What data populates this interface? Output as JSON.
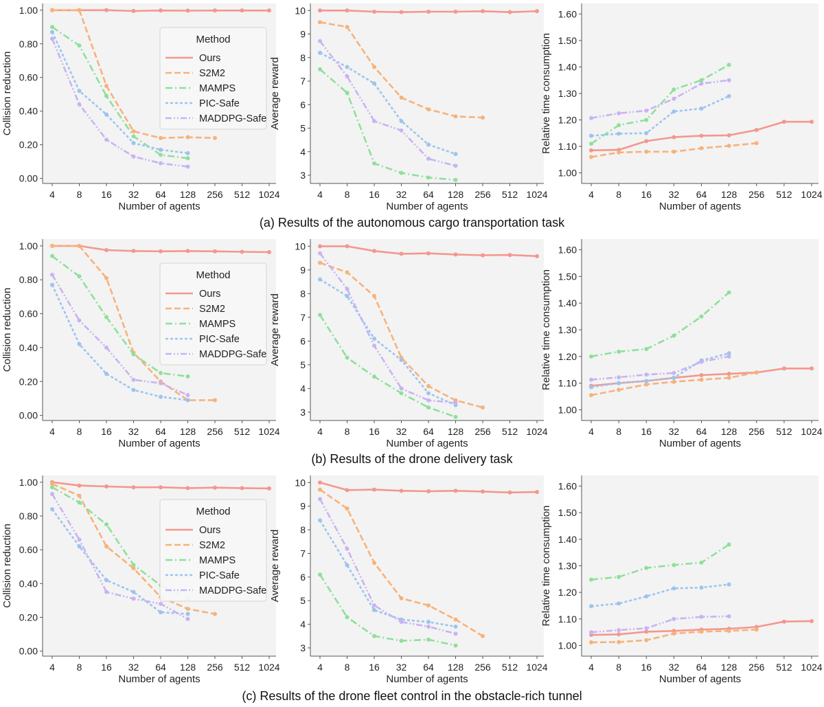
{
  "x_ticks": [
    "4",
    "8",
    "16",
    "32",
    "64",
    "128",
    "256",
    "512",
    "1024"
  ],
  "legend": {
    "title": "Method",
    "entries": [
      {
        "name": "Ours",
        "color": "#f4978e",
        "dash": "solid"
      },
      {
        "name": "S2M2",
        "color": "#f7b27a",
        "dash": "dashed"
      },
      {
        "name": "MAMPS",
        "color": "#8ee09a",
        "dash": "dashdot"
      },
      {
        "name": "PIC-Safe",
        "color": "#9cc4ef",
        "dash": "dotted"
      },
      {
        "name": "MADDPG-Safe",
        "color": "#c8b3f3",
        "dash": "dashdotdot"
      }
    ]
  },
  "chart_data": [
    {
      "type": "line",
      "caption": "(a) Results of the autonomous cargo transportation task",
      "panels": [
        {
          "metric": "collision",
          "xlabel": "Number of agents",
          "ylabel": "Collision reduction",
          "x": [
            4,
            8,
            16,
            32,
            64,
            128,
            256,
            512,
            1024
          ],
          "ylim": [
            -0.03,
            1.04
          ],
          "yticks": [
            0.0,
            0.2,
            0.4,
            0.6,
            0.8,
            1.0
          ],
          "ytick_labels": [
            "0.00",
            "0.20",
            "0.40",
            "0.60",
            "0.80",
            "1.00"
          ],
          "legend": "upper-right",
          "series": [
            {
              "name": "Ours",
              "values": [
                1.0,
                1.0,
                1.0,
                0.995,
                0.998,
                0.997,
                0.998,
                0.998,
                0.998
              ]
            },
            {
              "name": "S2M2",
              "values": [
                1.0,
                1.0,
                0.55,
                0.28,
                0.24,
                0.245,
                0.24
              ]
            },
            {
              "name": "MAMPS",
              "values": [
                0.9,
                0.79,
                0.49,
                0.25,
                0.14,
                0.12
              ]
            },
            {
              "name": "PIC-Safe",
              "values": [
                0.87,
                0.52,
                0.38,
                0.21,
                0.17,
                0.15
              ]
            },
            {
              "name": "MADDPG-Safe",
              "values": [
                0.83,
                0.44,
                0.23,
                0.13,
                0.09,
                0.07
              ]
            }
          ]
        },
        {
          "metric": "reward",
          "xlabel": "Number of agents",
          "ylabel": "Average reward",
          "x": [
            4,
            8,
            16,
            32,
            64,
            128,
            256,
            512,
            1024
          ],
          "ylim": [
            2.65,
            10.3
          ],
          "yticks": [
            3,
            4,
            5,
            6,
            7,
            8,
            9,
            10
          ],
          "ytick_labels": [
            "3",
            "4",
            "5",
            "6",
            "7",
            "8",
            "9",
            "10"
          ],
          "series": [
            {
              "name": "Ours",
              "values": [
                10.0,
                10.0,
                9.95,
                9.93,
                9.95,
                9.95,
                9.97,
                9.93,
                9.97
              ]
            },
            {
              "name": "S2M2",
              "values": [
                9.5,
                9.3,
                7.6,
                6.3,
                5.8,
                5.5,
                5.45
              ]
            },
            {
              "name": "MAMPS",
              "values": [
                7.5,
                6.5,
                3.5,
                3.1,
                2.9,
                2.8
              ]
            },
            {
              "name": "PIC-Safe",
              "values": [
                8.2,
                7.6,
                6.9,
                5.3,
                4.3,
                3.9
              ]
            },
            {
              "name": "MADDPG-Safe",
              "values": [
                8.7,
                7.2,
                5.3,
                4.9,
                3.7,
                3.4
              ]
            }
          ]
        },
        {
          "metric": "time",
          "xlabel": "Number of agents",
          "ylabel": "Relative time consumption",
          "x": [
            4,
            8,
            16,
            32,
            64,
            128,
            256,
            512,
            1024
          ],
          "ylim": [
            0.96,
            1.64
          ],
          "yticks": [
            1.0,
            1.1,
            1.2,
            1.3,
            1.4,
            1.5,
            1.6
          ],
          "ytick_labels": [
            "1.00",
            "1.10",
            "1.20",
            "1.30",
            "1.40",
            "1.50",
            "1.60"
          ],
          "series": [
            {
              "name": "Ours",
              "values": [
                1.085,
                1.087,
                1.12,
                1.135,
                1.14,
                1.142,
                1.162,
                1.193,
                1.193
              ]
            },
            {
              "name": "S2M2",
              "values": [
                1.06,
                1.077,
                1.08,
                1.08,
                1.093,
                1.102,
                1.112
              ]
            },
            {
              "name": "MAMPS",
              "values": [
                1.11,
                1.18,
                1.2,
                1.315,
                1.35,
                1.408
              ]
            },
            {
              "name": "PIC-Safe",
              "values": [
                1.14,
                1.148,
                1.15,
                1.232,
                1.243,
                1.29
              ]
            },
            {
              "name": "MADDPG-Safe",
              "values": [
                1.207,
                1.225,
                1.235,
                1.28,
                1.337,
                1.35
              ]
            }
          ]
        }
      ]
    },
    {
      "type": "line",
      "caption": "(b) Results of the drone delivery task",
      "panels": [
        {
          "metric": "collision",
          "xlabel": "Number of agents",
          "ylabel": "Collision reduction",
          "x": [
            4,
            8,
            16,
            32,
            64,
            128,
            256,
            512,
            1024
          ],
          "ylim": [
            -0.03,
            1.04
          ],
          "yticks": [
            0.0,
            0.2,
            0.4,
            0.6,
            0.8,
            1.0
          ],
          "ytick_labels": [
            "0.00",
            "0.20",
            "0.40",
            "0.60",
            "0.80",
            "1.00"
          ],
          "legend": "upper-right",
          "series": [
            {
              "name": "Ours",
              "values": [
                1.0,
                1.0,
                0.975,
                0.97,
                0.968,
                0.97,
                0.968,
                0.965,
                0.963
              ]
            },
            {
              "name": "S2M2",
              "values": [
                1.0,
                1.0,
                0.81,
                0.37,
                0.2,
                0.09,
                0.09
              ]
            },
            {
              "name": "MAMPS",
              "values": [
                0.94,
                0.82,
                0.58,
                0.36,
                0.25,
                0.23
              ]
            },
            {
              "name": "PIC-Safe",
              "values": [
                0.77,
                0.42,
                0.245,
                0.15,
                0.11,
                0.09
              ]
            },
            {
              "name": "MADDPG-Safe",
              "values": [
                0.83,
                0.56,
                0.4,
                0.21,
                0.19,
                0.12
              ]
            }
          ]
        },
        {
          "metric": "reward",
          "xlabel": "Number of agents",
          "ylabel": "Average reward",
          "x": [
            4,
            8,
            16,
            32,
            64,
            128,
            256,
            512,
            1024
          ],
          "ylim": [
            2.65,
            10.3
          ],
          "yticks": [
            3,
            4,
            5,
            6,
            7,
            8,
            9,
            10
          ],
          "ytick_labels": [
            "3",
            "4",
            "5",
            "6",
            "7",
            "8",
            "9",
            "10"
          ],
          "series": [
            {
              "name": "Ours",
              "values": [
                10.0,
                10.0,
                9.8,
                9.68,
                9.7,
                9.65,
                9.62,
                9.63,
                9.58
              ]
            },
            {
              "name": "S2M2",
              "values": [
                9.3,
                8.9,
                7.9,
                5.3,
                4.1,
                3.5,
                3.2
              ]
            },
            {
              "name": "MAMPS",
              "values": [
                7.1,
                5.3,
                4.5,
                3.8,
                3.2,
                2.8
              ]
            },
            {
              "name": "PIC-Safe",
              "values": [
                8.6,
                7.9,
                6.1,
                5.2,
                3.8,
                3.3
              ]
            },
            {
              "name": "MADDPG-Safe",
              "values": [
                9.7,
                8.2,
                5.8,
                4.0,
                3.5,
                3.4
              ]
            }
          ]
        },
        {
          "metric": "time",
          "xlabel": "Number of agents",
          "ylabel": "Relative time consumption",
          "x": [
            4,
            8,
            16,
            32,
            64,
            128,
            256,
            512,
            1024
          ],
          "ylim": [
            0.96,
            1.64
          ],
          "yticks": [
            1.0,
            1.1,
            1.2,
            1.3,
            1.4,
            1.5,
            1.6
          ],
          "ytick_labels": [
            "1.00",
            "1.10",
            "1.20",
            "1.30",
            "1.40",
            "1.50",
            "1.60"
          ],
          "series": [
            {
              "name": "Ours",
              "values": [
                1.09,
                1.1,
                1.108,
                1.12,
                1.13,
                1.135,
                1.14,
                1.155,
                1.155
              ]
            },
            {
              "name": "S2M2",
              "values": [
                1.055,
                1.075,
                1.095,
                1.105,
                1.113,
                1.12,
                1.14
              ]
            },
            {
              "name": "MAMPS",
              "values": [
                1.2,
                1.218,
                1.228,
                1.278,
                1.35,
                1.44
              ]
            },
            {
              "name": "PIC-Safe",
              "values": [
                1.085,
                1.1,
                1.108,
                1.12,
                1.185,
                1.212
              ]
            },
            {
              "name": "MADDPG-Safe",
              "values": [
                1.113,
                1.122,
                1.132,
                1.138,
                1.18,
                1.2
              ]
            }
          ]
        }
      ]
    },
    {
      "type": "line",
      "caption": "(c) Results of the drone fleet control in the obstacle-rich tunnel",
      "panels": [
        {
          "metric": "collision",
          "xlabel": "Number of agents",
          "ylabel": "Collision reduction",
          "x": [
            4,
            8,
            16,
            32,
            64,
            128,
            256,
            512,
            1024
          ],
          "ylim": [
            -0.03,
            1.04
          ],
          "yticks": [
            0.0,
            0.2,
            0.4,
            0.6,
            0.8,
            1.0
          ],
          "ytick_labels": [
            "0.00",
            "0.20",
            "0.40",
            "0.60",
            "0.80",
            "1.00"
          ],
          "legend": "upper-right",
          "series": [
            {
              "name": "Ours",
              "values": [
                1.0,
                0.98,
                0.975,
                0.97,
                0.97,
                0.965,
                0.968,
                0.965,
                0.963
              ]
            },
            {
              "name": "S2M2",
              "values": [
                0.99,
                0.92,
                0.62,
                0.49,
                0.32,
                0.25,
                0.22
              ]
            },
            {
              "name": "MAMPS",
              "values": [
                0.97,
                0.88,
                0.75,
                0.51,
                0.39,
                0.31
              ]
            },
            {
              "name": "PIC-Safe",
              "values": [
                0.84,
                0.62,
                0.42,
                0.35,
                0.23,
                0.22
              ]
            },
            {
              "name": "MADDPG-Safe",
              "values": [
                0.93,
                0.66,
                0.35,
                0.31,
                0.28,
                0.19
              ]
            }
          ]
        },
        {
          "metric": "reward",
          "xlabel": "Number of agents",
          "ylabel": "Average reward",
          "x": [
            4,
            8,
            16,
            32,
            64,
            128,
            256,
            512,
            1024
          ],
          "ylim": [
            2.65,
            10.3
          ],
          "yticks": [
            3,
            4,
            5,
            6,
            7,
            8,
            9,
            10
          ],
          "ytick_labels": [
            "3",
            "4",
            "5",
            "6",
            "7",
            "8",
            "9",
            "10"
          ],
          "series": [
            {
              "name": "Ours",
              "values": [
                10.0,
                9.68,
                9.7,
                9.65,
                9.63,
                9.65,
                9.62,
                9.58,
                9.6
              ]
            },
            {
              "name": "S2M2",
              "values": [
                9.7,
                8.9,
                6.6,
                5.1,
                4.8,
                4.2,
                3.5
              ]
            },
            {
              "name": "MAMPS",
              "values": [
                6.1,
                4.3,
                3.5,
                3.3,
                3.35,
                3.1
              ]
            },
            {
              "name": "PIC-Safe",
              "values": [
                8.4,
                6.5,
                4.6,
                4.2,
                4.1,
                3.9
              ]
            },
            {
              "name": "MADDPG-Safe",
              "values": [
                9.3,
                7.2,
                4.8,
                4.1,
                3.9,
                3.6
              ]
            }
          ]
        },
        {
          "metric": "time",
          "xlabel": "Number of agents",
          "ylabel": "Relative time consumption",
          "x": [
            4,
            8,
            16,
            32,
            64,
            128,
            256,
            512,
            1024
          ],
          "ylim": [
            0.96,
            1.64
          ],
          "yticks": [
            1.0,
            1.1,
            1.2,
            1.3,
            1.4,
            1.5,
            1.6
          ],
          "ytick_labels": [
            "1.00",
            "1.10",
            "1.20",
            "1.30",
            "1.40",
            "1.50",
            "1.60"
          ],
          "series": [
            {
              "name": "Ours",
              "values": [
                1.04,
                1.042,
                1.052,
                1.055,
                1.06,
                1.063,
                1.07,
                1.09,
                1.092
              ]
            },
            {
              "name": "S2M2",
              "values": [
                1.012,
                1.013,
                1.02,
                1.045,
                1.052,
                1.055,
                1.06
              ]
            },
            {
              "name": "MAMPS",
              "values": [
                1.248,
                1.258,
                1.292,
                1.303,
                1.312,
                1.38
              ]
            },
            {
              "name": "PIC-Safe",
              "values": [
                1.148,
                1.158,
                1.185,
                1.215,
                1.218,
                1.23
              ]
            },
            {
              "name": "MADDPG-Safe",
              "values": [
                1.05,
                1.058,
                1.065,
                1.1,
                1.108,
                1.11
              ]
            }
          ]
        }
      ]
    }
  ]
}
